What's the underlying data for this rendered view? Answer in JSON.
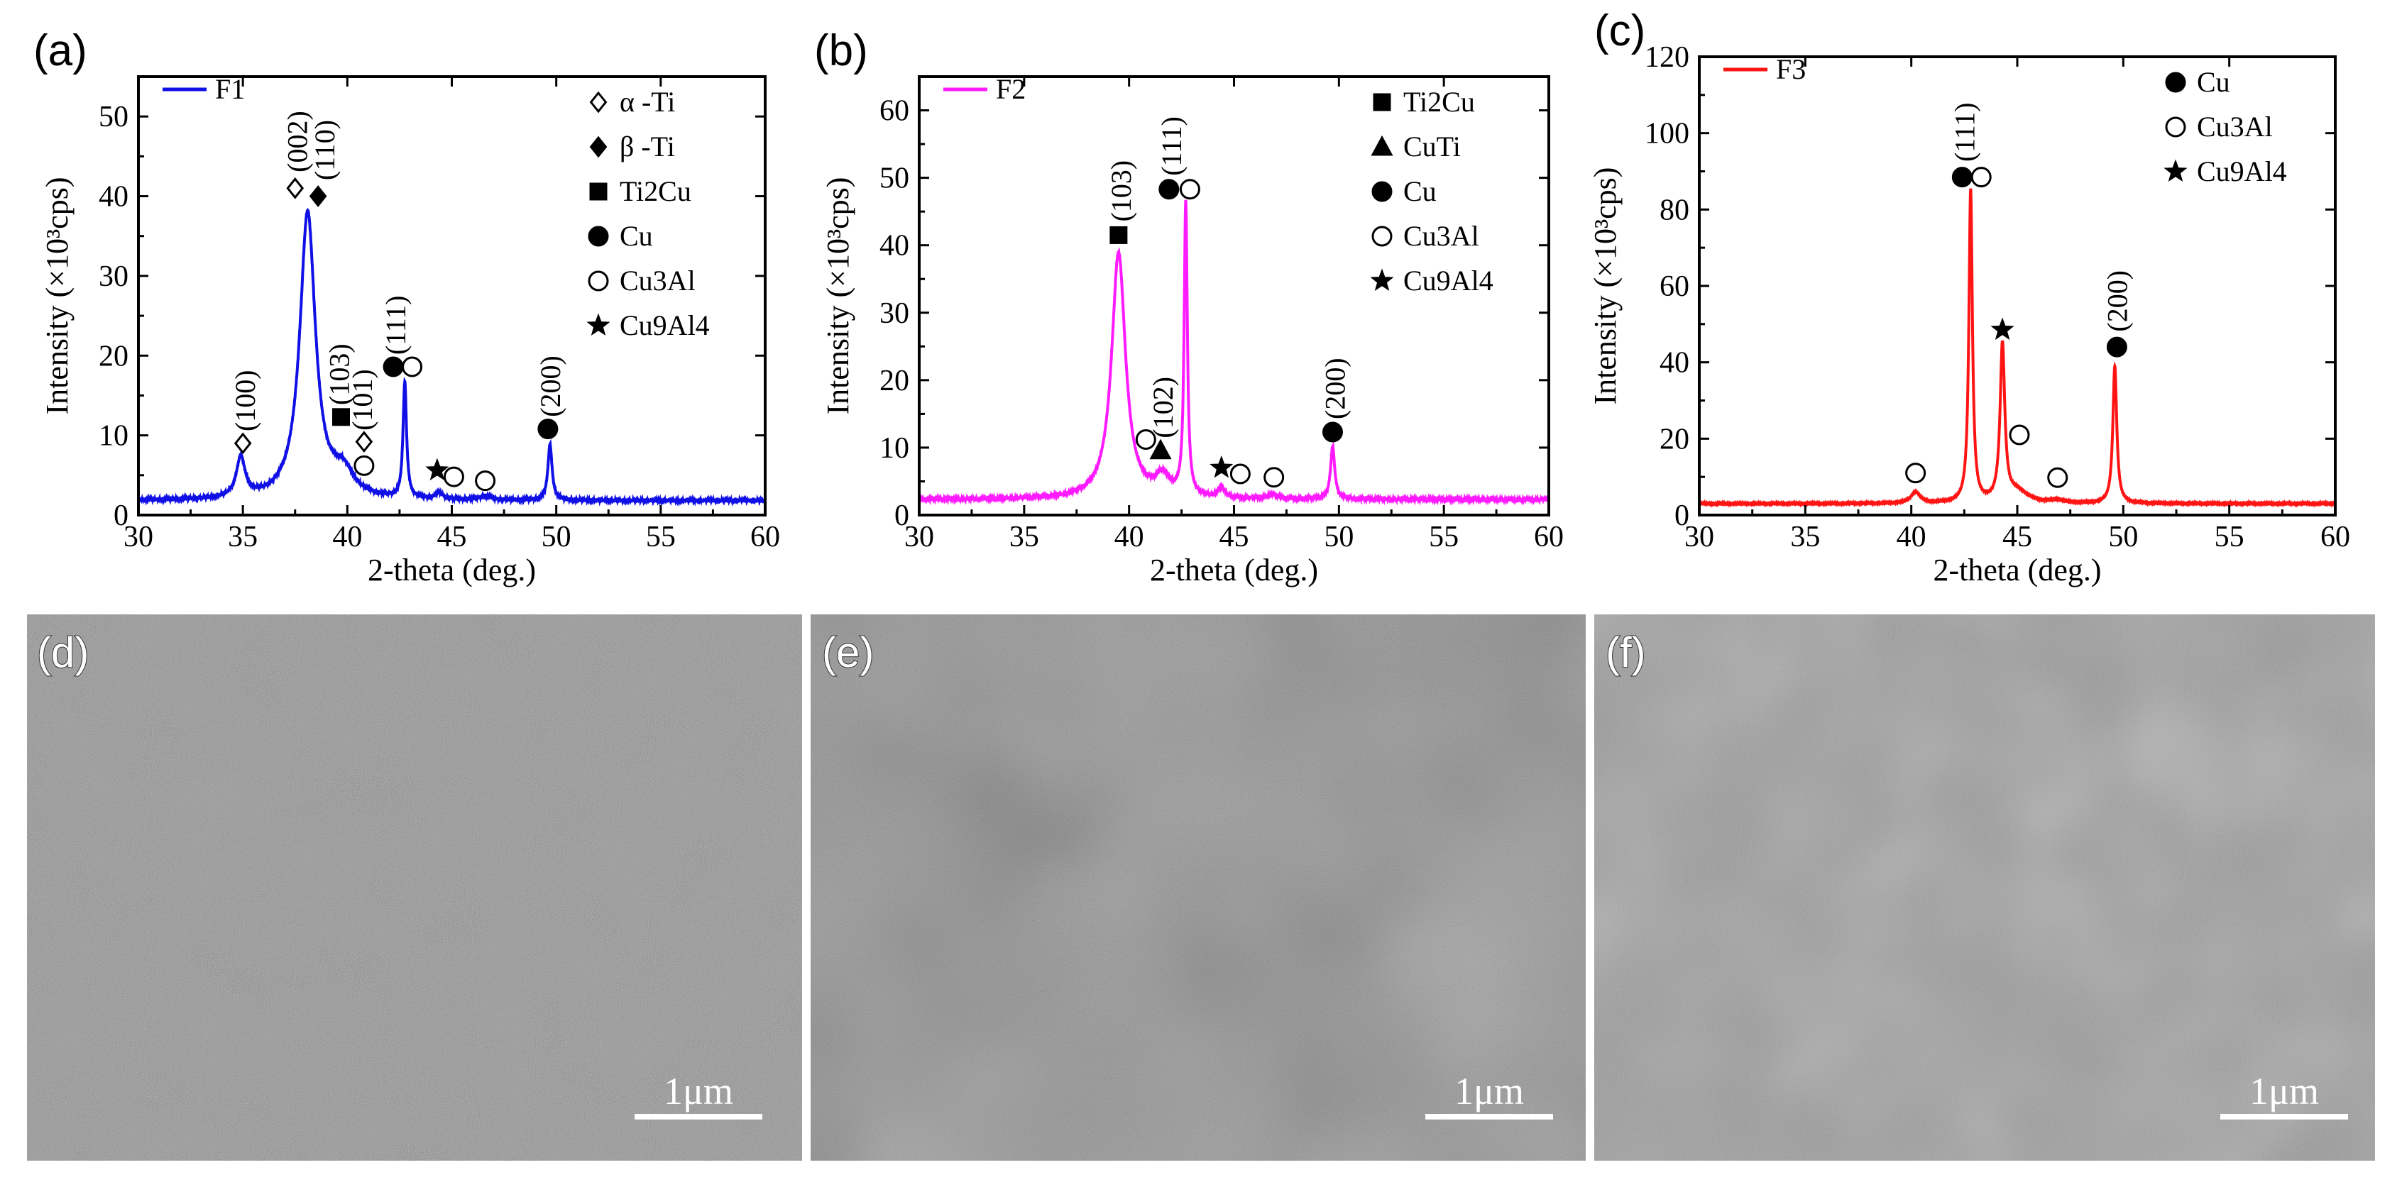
{
  "chart_data": [
    {
      "type": "line",
      "panel_label": "(a)",
      "xlabel": "2-theta (deg.)",
      "ylabel": "Intensity (×10³cps)",
      "xlim": [
        30,
        60
      ],
      "ylim": [
        0,
        55
      ],
      "xticks": [
        30,
        35,
        40,
        45,
        50,
        55,
        60
      ],
      "yticks": [
        0,
        10,
        20,
        30,
        40,
        50
      ],
      "grid": false,
      "legend_position": "top-left",
      "series": [
        {
          "name": "F1",
          "color": "#1010e6",
          "baseline": 1.8,
          "peaks": [
            {
              "x": 34.9,
              "height": 5.0,
              "width": 0.25
            },
            {
              "x": 38.1,
              "height": 36.0,
              "width": 0.45
            },
            {
              "x": 39.8,
              "height": 3.0,
              "width": 0.6
            },
            {
              "x": 42.75,
              "height": 14.5,
              "width": 0.1
            },
            {
              "x": 44.4,
              "height": 0.8,
              "width": 0.2
            },
            {
              "x": 46.6,
              "height": 0.5,
              "width": 0.3
            },
            {
              "x": 49.7,
              "height": 7.0,
              "width": 0.12
            }
          ]
        }
      ],
      "markers_legend": [
        {
          "symbol": "open-diamond",
          "label": "α -Ti"
        },
        {
          "symbol": "filled-diamond",
          "label": "β -Ti"
        },
        {
          "symbol": "filled-square",
          "label": "Ti2Cu"
        },
        {
          "symbol": "filled-circle",
          "label": "Cu"
        },
        {
          "symbol": "open-circle",
          "label": "Cu3Al"
        },
        {
          "symbol": "filled-star",
          "label": "Cu9Al4"
        }
      ],
      "peak_markers": [
        {
          "x": 35.0,
          "y": 9,
          "symbol": "open-diamond"
        },
        {
          "x": 37.5,
          "y": 41,
          "symbol": "open-diamond"
        },
        {
          "x": 38.6,
          "y": 40,
          "symbol": "filled-diamond"
        },
        {
          "x": 39.7,
          "y": 12.3,
          "symbol": "filled-square"
        },
        {
          "x": 40.8,
          "y": 9.2,
          "symbol": "open-diamond"
        },
        {
          "x": 40.8,
          "y": 6.2,
          "symbol": "open-circle"
        },
        {
          "x": 42.2,
          "y": 18.6,
          "symbol": "filled-circle"
        },
        {
          "x": 43.1,
          "y": 18.6,
          "symbol": "open-circle"
        },
        {
          "x": 44.3,
          "y": 5.6,
          "symbol": "filled-star"
        },
        {
          "x": 45.1,
          "y": 4.8,
          "symbol": "open-circle"
        },
        {
          "x": 46.6,
          "y": 4.3,
          "symbol": "open-circle"
        },
        {
          "x": 49.6,
          "y": 10.8,
          "symbol": "filled-circle"
        }
      ],
      "peak_labels": [
        {
          "text": "(100)",
          "x": 35.1,
          "y": 10.5
        },
        {
          "text": "(002)",
          "x": 37.6,
          "y": 43
        },
        {
          "text": "(110)",
          "x": 38.9,
          "y": 42
        },
        {
          "text": "(103)",
          "x": 39.6,
          "y": 13.8
        },
        {
          "text": "(101)",
          "x": 40.7,
          "y": 10.6
        },
        {
          "text": "(111)",
          "x": 42.3,
          "y": 20.1
        },
        {
          "text": "(200)",
          "x": 49.7,
          "y": 12.3
        }
      ]
    },
    {
      "type": "line",
      "panel_label": "(b)",
      "xlabel": "2-theta (deg.)",
      "ylabel": "Intensity (×10³cps)",
      "xlim": [
        30,
        60
      ],
      "ylim": [
        0,
        65
      ],
      "xticks": [
        30,
        35,
        40,
        45,
        50,
        55,
        60
      ],
      "yticks": [
        0,
        10,
        20,
        30,
        40,
        50,
        60
      ],
      "grid": false,
      "legend_position": "top-left",
      "series": [
        {
          "name": "F2",
          "color": "#ff1aff",
          "baseline": 2.3,
          "peaks": [
            {
              "x": 39.5,
              "height": 36.5,
              "width": 0.4
            },
            {
              "x": 41.6,
              "height": 3.0,
              "width": 0.4
            },
            {
              "x": 42.7,
              "height": 43.5,
              "width": 0.09
            },
            {
              "x": 44.4,
              "height": 1.5,
              "width": 0.2
            },
            {
              "x": 46.8,
              "height": 0.6,
              "width": 0.3
            },
            {
              "x": 49.7,
              "height": 7.8,
              "width": 0.12
            }
          ]
        }
      ],
      "markers_legend": [
        {
          "symbol": "filled-square",
          "label": "Ti2Cu"
        },
        {
          "symbol": "filled-triangle",
          "label": "CuTi"
        },
        {
          "symbol": "filled-circle",
          "label": "Cu"
        },
        {
          "symbol": "open-circle",
          "label": "Cu3Al"
        },
        {
          "symbol": "filled-star",
          "label": "Cu9Al4"
        }
      ],
      "peak_markers": [
        {
          "x": 39.5,
          "y": 41.5,
          "symbol": "filled-square"
        },
        {
          "x": 40.8,
          "y": 11.2,
          "symbol": "open-circle"
        },
        {
          "x": 41.5,
          "y": 9.6,
          "symbol": "filled-triangle"
        },
        {
          "x": 41.9,
          "y": 48.3,
          "symbol": "filled-circle"
        },
        {
          "x": 42.9,
          "y": 48.3,
          "symbol": "open-circle"
        },
        {
          "x": 44.4,
          "y": 7.0,
          "symbol": "filled-star"
        },
        {
          "x": 45.3,
          "y": 6.1,
          "symbol": "open-circle"
        },
        {
          "x": 46.9,
          "y": 5.6,
          "symbol": "open-circle"
        },
        {
          "x": 49.7,
          "y": 12.3,
          "symbol": "filled-circle"
        }
      ],
      "peak_labels": [
        {
          "text": "(103)",
          "x": 39.6,
          "y": 43.5
        },
        {
          "text": "(102)",
          "x": 41.6,
          "y": 11.4
        },
        {
          "text": "(111)",
          "x": 42.0,
          "y": 50.3
        },
        {
          "text": "(200)",
          "x": 49.8,
          "y": 14.2
        }
      ]
    },
    {
      "type": "line",
      "panel_label": "(c)",
      "xlabel": "2-theta (deg.)",
      "ylabel": "Intensity (×10³cps)",
      "xlim": [
        30,
        60
      ],
      "ylim": [
        0,
        120
      ],
      "xticks": [
        30,
        35,
        40,
        45,
        50,
        55,
        60
      ],
      "yticks": [
        0,
        20,
        40,
        60,
        80,
        100,
        120
      ],
      "grid": false,
      "legend_position": "top-left",
      "series": [
        {
          "name": "F3",
          "color": "#ff1414",
          "baseline": 3.0,
          "peaks": [
            {
              "x": 40.2,
              "height": 3.0,
              "width": 0.25
            },
            {
              "x": 42.8,
              "height": 82.0,
              "width": 0.1
            },
            {
              "x": 44.3,
              "height": 41.0,
              "width": 0.13
            },
            {
              "x": 45.0,
              "height": 3.0,
              "width": 0.6
            },
            {
              "x": 46.9,
              "height": 0.8,
              "width": 0.3
            },
            {
              "x": 49.6,
              "height": 36.0,
              "width": 0.11
            }
          ]
        }
      ],
      "markers_legend": [
        {
          "symbol": "filled-circle",
          "label": "Cu"
        },
        {
          "symbol": "open-circle",
          "label": "Cu3Al"
        },
        {
          "symbol": "filled-star",
          "label": "Cu9Al4"
        }
      ],
      "peak_markers": [
        {
          "x": 40.2,
          "y": 11,
          "symbol": "open-circle"
        },
        {
          "x": 42.4,
          "y": 88.5,
          "symbol": "filled-circle"
        },
        {
          "x": 43.3,
          "y": 88.5,
          "symbol": "open-circle"
        },
        {
          "x": 44.3,
          "y": 48.5,
          "symbol": "filled-star"
        },
        {
          "x": 45.1,
          "y": 21,
          "symbol": "open-circle"
        },
        {
          "x": 46.9,
          "y": 9.8,
          "symbol": "open-circle"
        },
        {
          "x": 49.7,
          "y": 44,
          "symbol": "filled-circle"
        }
      ],
      "peak_labels": [
        {
          "text": "(111)",
          "x": 42.5,
          "y": 92.5
        },
        {
          "text": "(200)",
          "x": 49.7,
          "y": 48
        }
      ]
    }
  ],
  "sem_panels": [
    {
      "label": "(d)",
      "scale_bar": "1μm",
      "texture": "coarse-nodular",
      "base_color": "#8a8a8a"
    },
    {
      "label": "(e)",
      "scale_bar": "1μm",
      "texture": "fine-mottled",
      "base_color": "#8f8f8f"
    },
    {
      "label": "(f)",
      "scale_bar": "1μm",
      "texture": "fine-uniform",
      "base_color": "#959595"
    }
  ]
}
